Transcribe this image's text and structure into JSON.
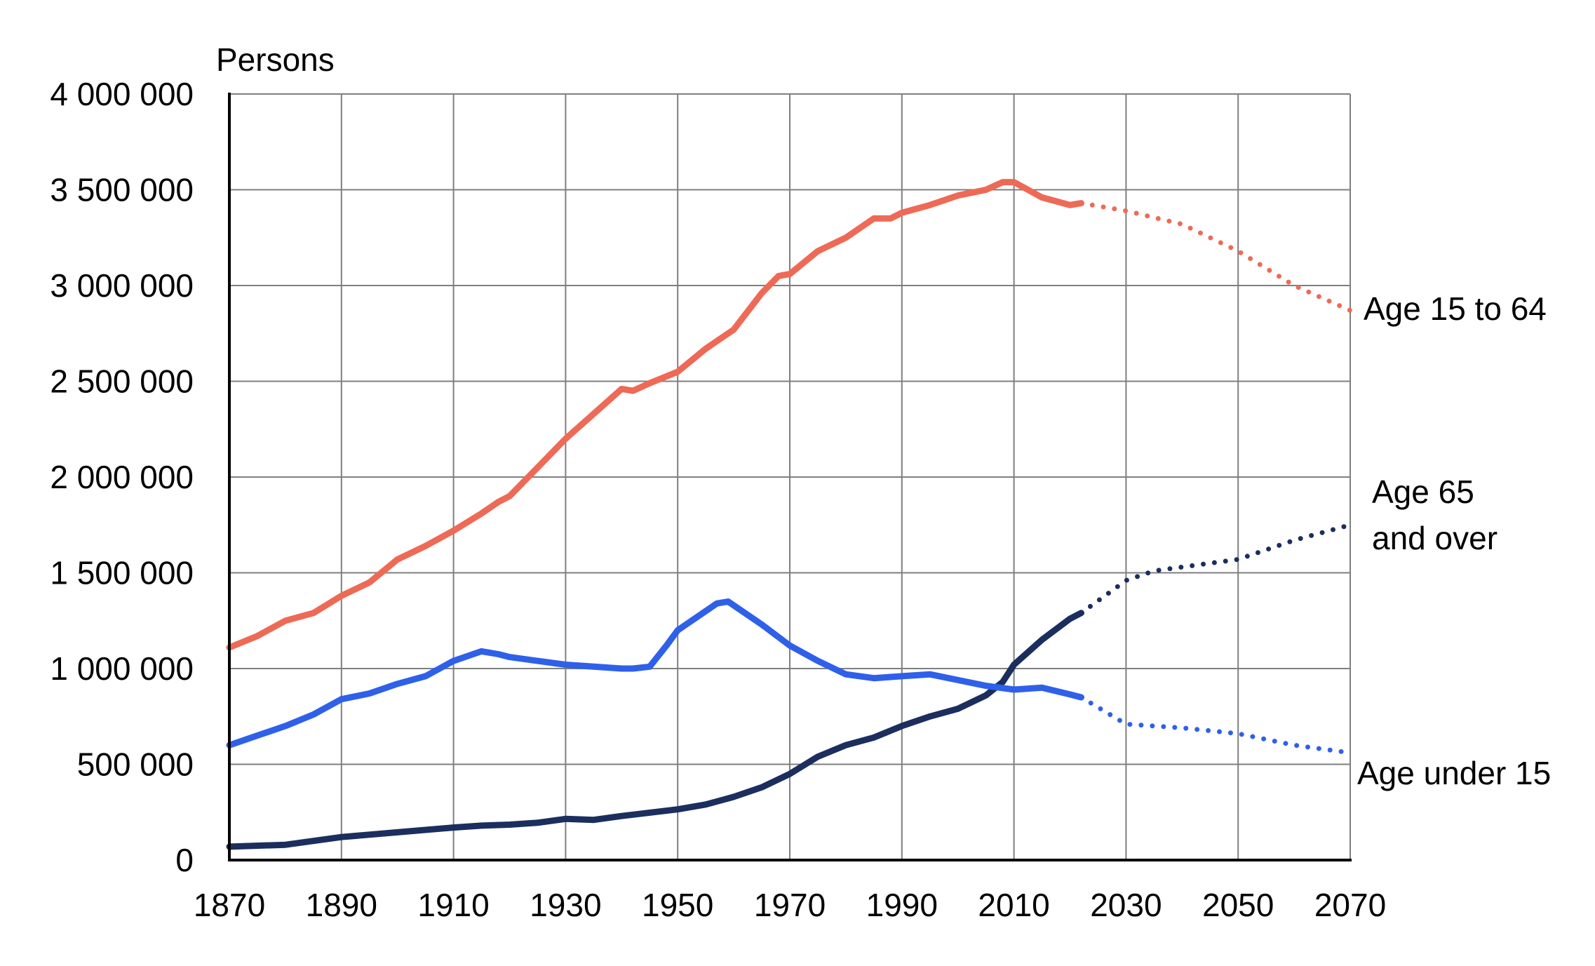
{
  "chart_data": {
    "type": "line",
    "title": "",
    "ylabel": "Persons",
    "xlabel": "",
    "xlim": [
      1870,
      2070
    ],
    "ylim": [
      0,
      4000000
    ],
    "grid": true,
    "x_ticks": [
      "1870",
      "1890",
      "1910",
      "1930",
      "1950",
      "1970",
      "1990",
      "2010",
      "2030",
      "2050",
      "2070"
    ],
    "y_ticks": [
      "0",
      "500 000",
      "1 000 000",
      "1 500 000",
      "2 000 000",
      "2 500 000",
      "3 000 000",
      "3 500 000",
      "4 000 000"
    ],
    "series": [
      {
        "name": "Age 15 to 64",
        "color": "#ee6a56",
        "label_lines": [
          "Age 15 to 64"
        ],
        "historical": [
          [
            1870,
            1110000
          ],
          [
            1875,
            1170000
          ],
          [
            1880,
            1250000
          ],
          [
            1885,
            1290000
          ],
          [
            1890,
            1380000
          ],
          [
            1895,
            1450000
          ],
          [
            1900,
            1570000
          ],
          [
            1905,
            1640000
          ],
          [
            1910,
            1720000
          ],
          [
            1915,
            1810000
          ],
          [
            1918,
            1870000
          ],
          [
            1920,
            1900000
          ],
          [
            1925,
            2050000
          ],
          [
            1930,
            2200000
          ],
          [
            1935,
            2330000
          ],
          [
            1940,
            2460000
          ],
          [
            1942,
            2450000
          ],
          [
            1945,
            2490000
          ],
          [
            1950,
            2550000
          ],
          [
            1955,
            2670000
          ],
          [
            1960,
            2770000
          ],
          [
            1965,
            2960000
          ],
          [
            1968,
            3050000
          ],
          [
            1970,
            3060000
          ],
          [
            1975,
            3180000
          ],
          [
            1980,
            3250000
          ],
          [
            1985,
            3350000
          ],
          [
            1988,
            3350000
          ],
          [
            1990,
            3380000
          ],
          [
            1995,
            3420000
          ],
          [
            2000,
            3470000
          ],
          [
            2005,
            3500000
          ],
          [
            2008,
            3540000
          ],
          [
            2010,
            3540000
          ],
          [
            2015,
            3460000
          ],
          [
            2020,
            3420000
          ],
          [
            2022,
            3430000
          ]
        ],
        "projection": [
          [
            2022,
            3430000
          ],
          [
            2030,
            3390000
          ],
          [
            2040,
            3320000
          ],
          [
            2050,
            3180000
          ],
          [
            2060,
            3000000
          ],
          [
            2070,
            2870000
          ]
        ]
      },
      {
        "name": "Age 65 and over",
        "color": "#1b2e5e",
        "label_lines": [
          "Age 65",
          "and over"
        ],
        "historical": [
          [
            1870,
            70000
          ],
          [
            1880,
            80000
          ],
          [
            1890,
            120000
          ],
          [
            1900,
            145000
          ],
          [
            1910,
            170000
          ],
          [
            1915,
            180000
          ],
          [
            1920,
            185000
          ],
          [
            1925,
            195000
          ],
          [
            1930,
            215000
          ],
          [
            1935,
            210000
          ],
          [
            1940,
            230000
          ],
          [
            1950,
            265000
          ],
          [
            1955,
            290000
          ],
          [
            1960,
            330000
          ],
          [
            1965,
            380000
          ],
          [
            1970,
            450000
          ],
          [
            1975,
            540000
          ],
          [
            1980,
            600000
          ],
          [
            1985,
            640000
          ],
          [
            1990,
            700000
          ],
          [
            1995,
            750000
          ],
          [
            2000,
            790000
          ],
          [
            2005,
            860000
          ],
          [
            2008,
            930000
          ],
          [
            2010,
            1020000
          ],
          [
            2015,
            1150000
          ],
          [
            2020,
            1260000
          ],
          [
            2022,
            1290000
          ]
        ],
        "projection": [
          [
            2022,
            1290000
          ],
          [
            2030,
            1460000
          ],
          [
            2035,
            1510000
          ],
          [
            2040,
            1530000
          ],
          [
            2050,
            1570000
          ],
          [
            2060,
            1670000
          ],
          [
            2070,
            1750000
          ]
        ]
      },
      {
        "name": "Age under 15",
        "color": "#2f60e9",
        "label_lines": [
          "Age under 15"
        ],
        "historical": [
          [
            1870,
            600000
          ],
          [
            1875,
            650000
          ],
          [
            1880,
            700000
          ],
          [
            1885,
            760000
          ],
          [
            1890,
            840000
          ],
          [
            1895,
            870000
          ],
          [
            1900,
            920000
          ],
          [
            1905,
            960000
          ],
          [
            1910,
            1040000
          ],
          [
            1915,
            1090000
          ],
          [
            1918,
            1075000
          ],
          [
            1920,
            1060000
          ],
          [
            1925,
            1040000
          ],
          [
            1930,
            1020000
          ],
          [
            1935,
            1010000
          ],
          [
            1940,
            1000000
          ],
          [
            1942,
            1000000
          ],
          [
            1945,
            1010000
          ],
          [
            1948,
            1120000
          ],
          [
            1950,
            1200000
          ],
          [
            1955,
            1300000
          ],
          [
            1957,
            1340000
          ],
          [
            1959,
            1350000
          ],
          [
            1965,
            1230000
          ],
          [
            1970,
            1120000
          ],
          [
            1975,
            1040000
          ],
          [
            1980,
            970000
          ],
          [
            1985,
            950000
          ],
          [
            1990,
            960000
          ],
          [
            1995,
            970000
          ],
          [
            2000,
            940000
          ],
          [
            2005,
            910000
          ],
          [
            2010,
            890000
          ],
          [
            2015,
            900000
          ],
          [
            2020,
            865000
          ],
          [
            2022,
            850000
          ]
        ],
        "projection": [
          [
            2022,
            850000
          ],
          [
            2030,
            710000
          ],
          [
            2040,
            690000
          ],
          [
            2050,
            660000
          ],
          [
            2060,
            600000
          ],
          [
            2070,
            560000
          ]
        ]
      }
    ]
  }
}
